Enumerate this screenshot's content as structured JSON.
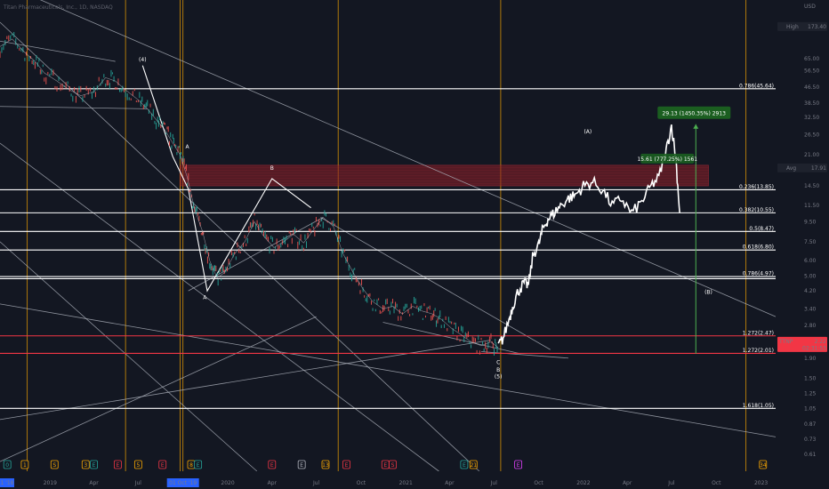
{
  "header": {
    "title": "Titan Pharmaceuticals, Inc., 1D, NASDAQ",
    "currency": "USD"
  },
  "colors": {
    "background": "#131722",
    "fib_line": "#ffffff",
    "fib_red": "#f23645",
    "vline": "#f7a600",
    "trend": "#aeb3bd",
    "price": "#ffffff",
    "resistance_zone": "#8b1f28",
    "measure_box": "#1b5e20",
    "measure_arrow": "#4caf50",
    "axis_text": "#787b86"
  },
  "chart_data": {
    "type": "line",
    "title": "Titan Pharmaceuticals, Inc., 1D, NASDAQ",
    "y_scale": "log",
    "ylim": [
      0.5,
      130
    ],
    "xlim": [
      "2018-09-20",
      "2023-01-31"
    ],
    "y_ticks": [
      "65.00",
      "56.50",
      "46.50",
      "38.50",
      "32.50",
      "26.50",
      "21.00",
      "17.50",
      "14.50",
      "11.50",
      "9.50",
      "7.50",
      "6.00",
      "5.00",
      "4.20",
      "3.40",
      "2.80",
      "2.30",
      "1.90",
      "1.50",
      "1.25",
      "1.05",
      "0.87",
      "0.73",
      "0.61"
    ],
    "x_ticks": [
      {
        "label": "2019",
        "date": "2019-01-01"
      },
      {
        "label": "Apr",
        "date": "2019-04-01"
      },
      {
        "label": "Jul",
        "date": "2019-07-01"
      },
      {
        "label": "2020",
        "date": "2020-01-01"
      },
      {
        "label": "Apr",
        "date": "2020-04-01"
      },
      {
        "label": "Jul",
        "date": "2020-07-01"
      },
      {
        "label": "Oct",
        "date": "2020-10-01"
      },
      {
        "label": "2021",
        "date": "2021-01-01"
      },
      {
        "label": "Apr",
        "date": "2021-04-01"
      },
      {
        "label": "Jul",
        "date": "2021-07-01"
      },
      {
        "label": "Oct",
        "date": "2021-10-01"
      },
      {
        "label": "2022",
        "date": "2022-01-01"
      },
      {
        "label": "Apr",
        "date": "2022-04-01"
      },
      {
        "label": "Jul",
        "date": "2022-07-01"
      },
      {
        "label": "Oct",
        "date": "2022-10-01"
      },
      {
        "label": "2023",
        "date": "2023-01-01"
      }
    ],
    "x_axis_start_label": "1 '18",
    "x_axis_highlight": {
      "label": "01 Oct '19",
      "date": "2019-10-01"
    },
    "axis_badges": {
      "high": {
        "label": "High",
        "value": "173.40",
        "price": 95
      },
      "avg": {
        "label": "Avg",
        "value": "17.91",
        "price": 17.91
      },
      "symbol": {
        "label": "TTNP",
        "value": "2.22",
        "price": 2.22
      },
      "countdown": {
        "value": "02:31:53"
      },
      "low": {
        "label": "Low",
        "value": "2.15",
        "price": 2.15
      }
    },
    "fib_levels": [
      {
        "label": "0.786(45.64)",
        "price": 45.64,
        "red": false
      },
      {
        "label": "0.236(13.85)",
        "price": 13.85,
        "red": false
      },
      {
        "label": "0.382(10.55)",
        "price": 10.55,
        "red": false
      },
      {
        "label": "0.5(8.47)",
        "price": 8.47,
        "red": false
      },
      {
        "label": "0.618(6.80)",
        "price": 6.8,
        "red": false
      },
      {
        "label": "0.786(4.97)",
        "price": 4.97,
        "red": false
      },
      {
        "label": "1.272(2.47)",
        "price": 2.47,
        "red": true
      },
      {
        "label": "1.272(2.01)",
        "price": 2.01,
        "red": true
      },
      {
        "label": "1.618(1.05)",
        "price": 1.05,
        "red": false
      }
    ],
    "fib_extra_lines": [
      4.85
    ],
    "vertical_lines": [
      "2018-11-15",
      "2019-06-05",
      "2019-09-25",
      "2019-10-01",
      "2020-08-15",
      "2021-07-15",
      "2022-12-01"
    ],
    "resistance_zone": {
      "x0": "2019-09-25",
      "x1": "2022-09-15",
      "y_low": 14.5,
      "y_high": 18.5
    },
    "measure": {
      "box_label": "29.13 (1450.35%) 2913",
      "inner_label": "15.61 (777.25%) 1561",
      "x": "2022-08-20",
      "y_from": 2.0,
      "y_to": 30.0
    },
    "trend_lines": [
      {
        "x0": "2018-09-20",
        "y0": 160,
        "x1": "2023-01-31",
        "y1": 3.1
      },
      {
        "x0": "2018-09-20",
        "y0": 80,
        "x1": "2019-05-15",
        "y1": 63
      },
      {
        "x0": "2018-09-20",
        "y0": 37,
        "x1": "2019-07-20",
        "y1": 36
      },
      {
        "x0": "2018-09-20",
        "y0": 100,
        "x1": "2021-06-01",
        "y1": 0.5
      },
      {
        "x0": "2018-09-20",
        "y0": 24,
        "x1": "2021-03-10",
        "y1": 0.5
      },
      {
        "x0": "2018-09-20",
        "y0": 7.5,
        "x1": "2020-03-01",
        "y1": 0.5
      },
      {
        "x0": "2018-09-20",
        "y0": 3.6,
        "x1": "2023-01-31",
        "y1": 0.75
      },
      {
        "x0": "2018-09-20",
        "y0": 0.92,
        "x1": "2021-06-25",
        "y1": 2.35
      },
      {
        "x0": "2018-09-20",
        "y0": 0.56,
        "x1": "2020-07-01",
        "y1": 3.1
      },
      {
        "x0": "2019-10-12",
        "y0": 4.2,
        "x1": "2020-07-15",
        "y1": 10
      },
      {
        "x0": "2020-07-10",
        "y0": 10,
        "x1": "2021-10-25",
        "y1": 2.1
      },
      {
        "x0": "2020-11-15",
        "y0": 2.9,
        "x1": "2021-08-25",
        "y1": 2.0
      },
      {
        "x0": "2021-06-05",
        "y0": 2.05,
        "x1": "2021-12-01",
        "y1": 1.9
      }
    ],
    "wave_path": [
      {
        "x": "2019-07-10",
        "y": 60
      },
      {
        "x": "2019-09-10",
        "y": 20.5
      },
      {
        "x": "2019-10-12",
        "y": 14
      },
      {
        "x": "2019-11-20",
        "y": 4.2
      },
      {
        "x": "2020-04-01",
        "y": 15.8
      },
      {
        "x": "2020-06-20",
        "y": 11.2
      }
    ],
    "wave_labels": [
      {
        "text": "(4)",
        "x": "2019-07-10",
        "y": 63
      },
      {
        "text": "A",
        "x": "2019-10-10",
        "y": 22.5
      },
      {
        "text": "A",
        "x": "2019-11-15",
        "y": 3.8
      },
      {
        "text": "B",
        "x": "2020-04-01",
        "y": 17.5
      },
      {
        "text": "C",
        "x": "2021-07-10",
        "y": 1.77
      },
      {
        "text": "B",
        "x": "2021-07-10",
        "y": 1.62
      },
      {
        "text": "(5)",
        "x": "2021-07-10",
        "y": 1.5
      },
      {
        "text": "(A)",
        "x": "2022-01-10",
        "y": 27
      },
      {
        "text": "(B)",
        "x": "2022-09-15",
        "y": 4.05
      }
    ],
    "series": [
      {
        "x": [
          "2018-09-20",
          "2018-10-15",
          "2018-11-10",
          "2018-12-01",
          "2018-12-20",
          "2019-01-15",
          "2019-02-10",
          "2019-03-05",
          "2019-04-01",
          "2019-04-25",
          "2019-05-15",
          "2019-06-05",
          "2019-07-01",
          "2019-07-20",
          "2019-08-10",
          "2019-08-25",
          "2019-09-10",
          "2019-09-25",
          "2019-10-10",
          "2019-10-25",
          "2019-11-10",
          "2019-11-25",
          "2019-12-10",
          "2019-12-25",
          "2020-01-15",
          "2020-02-05",
          "2020-02-25",
          "2020-03-15",
          "2020-04-05",
          "2020-04-25",
          "2020-05-15",
          "2020-06-05",
          "2020-06-25",
          "2020-07-15",
          "2020-08-05",
          "2020-08-25",
          "2020-09-15",
          "2020-10-05",
          "2020-10-25",
          "2020-11-15",
          "2020-12-05",
          "2020-12-25",
          "2021-01-15",
          "2021-02-05",
          "2021-02-25",
          "2021-03-15",
          "2021-04-05",
          "2021-04-25",
          "2021-05-15",
          "2021-06-05",
          "2021-06-25",
          "2021-07-10"
        ],
        "values": [
          75,
          82,
          70,
          63,
          55,
          50,
          45,
          42,
          44,
          52,
          50,
          45,
          40,
          36,
          31,
          28,
          24,
          21,
          16,
          11,
          8.5,
          6,
          4.9,
          5.2,
          6.5,
          7.5,
          9.5,
          8,
          7,
          7.5,
          8.2,
          7.4,
          8.6,
          10,
          9,
          6.5,
          5.2,
          4.3,
          3.7,
          3.4,
          3.5,
          3.2,
          3.5,
          3.3,
          3.2,
          3.0,
          2.7,
          2.5,
          2.3,
          2.2,
          2.3,
          2.15
        ]
      },
      {
        "x": [
          "2021-07-10",
          "2021-07-20",
          "2021-08-01",
          "2021-08-10",
          "2021-08-20",
          "2021-09-01",
          "2021-09-10",
          "2021-09-20",
          "2021-10-01",
          "2021-10-10",
          "2021-10-20",
          "2021-11-01",
          "2021-11-15",
          "2021-12-01",
          "2021-12-15",
          "2022-01-01",
          "2022-01-20",
          "2022-02-10",
          "2022-03-01",
          "2022-03-20",
          "2022-04-10",
          "2022-05-01",
          "2022-05-20",
          "2022-06-05",
          "2022-06-20",
          "2022-07-01",
          "2022-07-10",
          "2022-07-18"
        ],
        "values": [
          2.2,
          2.4,
          3.0,
          3.6,
          4.2,
          4.6,
          4.5,
          6.5,
          7.2,
          8.8,
          9.8,
          10.5,
          11.5,
          12.5,
          13,
          14.5,
          15.2,
          13.8,
          11.5,
          12.5,
          10.5,
          12,
          14.5,
          16,
          22,
          29.5,
          20,
          10.5
        ]
      }
    ],
    "event_markers": [
      {
        "text": "0",
        "x": "2018-10-05",
        "color": "#26a69a"
      },
      {
        "text": "1",
        "x": "2018-11-10",
        "color": "#f7a600"
      },
      {
        "text": "S",
        "x": "2019-01-10",
        "color": "#f7a600"
      },
      {
        "text": "3",
        "x": "2019-03-15",
        "color": "#f7a600"
      },
      {
        "text": "E",
        "x": "2019-04-01",
        "color": "#26a69a"
      },
      {
        "text": "E",
        "x": "2019-05-20",
        "color": "#f23645"
      },
      {
        "text": "5",
        "x": "2019-07-01",
        "color": "#f7a600"
      },
      {
        "text": "E",
        "x": "2019-08-20",
        "color": "#f23645"
      },
      {
        "text": "8",
        "x": "2019-10-18",
        "color": "#f7a600"
      },
      {
        "text": "E",
        "x": "2019-11-01",
        "color": "#26a69a"
      },
      {
        "text": "E",
        "x": "2020-04-01",
        "color": "#f23645"
      },
      {
        "text": "E",
        "x": "2020-06-01",
        "color": "#b2b5be"
      },
      {
        "text": "13",
        "x": "2020-07-20",
        "color": "#f7a600"
      },
      {
        "text": "E",
        "x": "2020-09-01",
        "color": "#f23645"
      },
      {
        "text": "E",
        "x": "2020-11-20",
        "color": "#f23645"
      },
      {
        "text": "S",
        "x": "2020-12-05",
        "color": "#f23645"
      },
      {
        "text": "E",
        "x": "2021-05-01",
        "color": "#26a69a"
      },
      {
        "text": "21",
        "x": "2021-05-20",
        "color": "#f7a600"
      },
      {
        "text": "E",
        "x": "2021-08-20",
        "color": "#e040fb"
      },
      {
        "text": "34",
        "x": "2023-01-05",
        "color": "#f7a600"
      }
    ]
  }
}
